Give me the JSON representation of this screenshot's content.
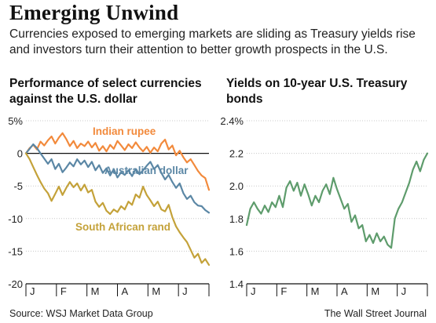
{
  "title": "Emerging Unwind",
  "subtitle": "Currencies exposed to emerging markets are sliding as Treasury yields rise and investors turn their attention to better growth prospects in the U.S.",
  "source": "Source: WSJ Market Data Group",
  "credit": "The Wall Street Journal",
  "colors": {
    "rupee": "#f28a3c",
    "aud": "#5b87a5",
    "rand": "#c4a23a",
    "yield": "#5e9c6c",
    "grid": "#c8c8c8"
  },
  "chart_data": [
    {
      "type": "line",
      "title": "Performance of select currencies against the U.S. dollar",
      "x_ticks": [
        "J",
        "F",
        "M",
        "A",
        "M",
        "J"
      ],
      "y_ticks": [
        "5%",
        "0",
        "-5",
        "-10",
        "-15",
        "-20"
      ],
      "ylim": [
        -20,
        5
      ],
      "grid": true,
      "zero_line": true,
      "series": [
        {
          "name": "Indian rupee",
          "color": "#f28a3c",
          "x": [
            0,
            0.02,
            0.04,
            0.06,
            0.08,
            0.1,
            0.12,
            0.14,
            0.16,
            0.18,
            0.2,
            0.22,
            0.24,
            0.26,
            0.28,
            0.3,
            0.32,
            0.34,
            0.36,
            0.38,
            0.4,
            0.42,
            0.44,
            0.46,
            0.48,
            0.5,
            0.52,
            0.54,
            0.56,
            0.58,
            0.6,
            0.62,
            0.64,
            0.66,
            0.68,
            0.7,
            0.72,
            0.74,
            0.76,
            0.78,
            0.8,
            0.82,
            0.84,
            0.86,
            0.88,
            0.9,
            0.92,
            0.94,
            0.96,
            0.98,
            1
          ],
          "y": [
            0,
            0.8,
            1.3,
            0.6,
            1.8,
            1.2,
            2,
            2.6,
            1.5,
            2.4,
            3.1,
            2.2,
            1.1,
            1.9,
            0.8,
            1.5,
            1.1,
            1.8,
            0.9,
            1.6,
            0.4,
            1.1,
            0.3,
            1.3,
            0.7,
            1.9,
            1.2,
            0.5,
            1.4,
            0.8,
            1.7,
            0.9,
            0.3,
            1,
            0.1,
            0.9,
            0.3,
            1.5,
            2.1,
            0.6,
            1.2,
            -0.3,
            0.4,
            -0.6,
            -1.4,
            -0.9,
            -1.8,
            -2.7,
            -3.4,
            -3.8,
            -5.6
          ]
        },
        {
          "name": "Australian dollar",
          "color": "#5b87a5",
          "x": [
            0,
            0.02,
            0.04,
            0.06,
            0.08,
            0.1,
            0.12,
            0.14,
            0.16,
            0.18,
            0.2,
            0.22,
            0.24,
            0.26,
            0.28,
            0.3,
            0.32,
            0.34,
            0.36,
            0.38,
            0.4,
            0.42,
            0.44,
            0.46,
            0.48,
            0.5,
            0.52,
            0.54,
            0.56,
            0.58,
            0.6,
            0.62,
            0.64,
            0.66,
            0.68,
            0.7,
            0.72,
            0.74,
            0.76,
            0.78,
            0.8,
            0.82,
            0.84,
            0.86,
            0.88,
            0.9,
            0.92,
            0.94,
            0.96,
            0.98,
            1
          ],
          "y": [
            0,
            0.7,
            1.4,
            0.8,
            0,
            -0.8,
            -1.6,
            -0.9,
            -2.4,
            -1.6,
            -2.9,
            -2.2,
            -1.4,
            -2,
            -0.9,
            -1.7,
            -1.1,
            -2.1,
            -1.3,
            -2.6,
            -1.8,
            -3,
            -2.3,
            -3.4,
            -2.4,
            -3.7,
            -2.9,
            -3.3,
            -2.6,
            -3.5,
            -2.4,
            -3.2,
            -2.6,
            -1.9,
            -1.3,
            -2.4,
            -1.8,
            -3,
            -4,
            -3.3,
            -4.4,
            -5.3,
            -4.6,
            -6.1,
            -7,
            -6.5,
            -7.5,
            -8,
            -8.1,
            -8.7,
            -9.1
          ]
        },
        {
          "name": "South African rand",
          "color": "#c4a23a",
          "x": [
            0,
            0.02,
            0.04,
            0.06,
            0.08,
            0.1,
            0.12,
            0.14,
            0.16,
            0.18,
            0.2,
            0.22,
            0.24,
            0.26,
            0.28,
            0.3,
            0.32,
            0.34,
            0.36,
            0.38,
            0.4,
            0.42,
            0.44,
            0.46,
            0.48,
            0.5,
            0.52,
            0.54,
            0.56,
            0.58,
            0.6,
            0.62,
            0.64,
            0.66,
            0.68,
            0.7,
            0.72,
            0.74,
            0.76,
            0.78,
            0.8,
            0.82,
            0.84,
            0.86,
            0.88,
            0.9,
            0.92,
            0.94,
            0.96,
            0.98,
            1
          ],
          "y": [
            0,
            -0.9,
            -2.1,
            -3.3,
            -4.4,
            -5.4,
            -6.1,
            -7.3,
            -6.2,
            -5.1,
            -6.4,
            -5.3,
            -4.4,
            -5.2,
            -4.6,
            -5.7,
            -4.8,
            -6,
            -5.6,
            -7.4,
            -8.2,
            -7.6,
            -8.8,
            -9.3,
            -8.6,
            -9,
            -8.1,
            -8.6,
            -7.4,
            -7.9,
            -6.3,
            -6.8,
            -5.1,
            -6.4,
            -7.2,
            -8.1,
            -7.4,
            -8.6,
            -8.9,
            -7.9,
            -9.8,
            -11.2,
            -12.1,
            -12.9,
            -13.6,
            -14.8,
            -16,
            -15.4,
            -16.8,
            -16.2,
            -17.1
          ]
        }
      ]
    },
    {
      "type": "line",
      "title": "Yields on 10-year U.S. Treasury bonds",
      "x_ticks": [
        "J",
        "F",
        "M",
        "A",
        "M",
        "J"
      ],
      "y_ticks": [
        "2.4%",
        "2.2",
        "2.0",
        "1.8",
        "1.6",
        "1.4"
      ],
      "ylim": [
        1.4,
        2.4
      ],
      "grid": true,
      "series": [
        {
          "name": "",
          "color": "#5e9c6c",
          "x": [
            0,
            0.02,
            0.04,
            0.06,
            0.08,
            0.1,
            0.12,
            0.14,
            0.16,
            0.18,
            0.2,
            0.22,
            0.24,
            0.26,
            0.28,
            0.3,
            0.32,
            0.34,
            0.36,
            0.38,
            0.4,
            0.42,
            0.44,
            0.46,
            0.48,
            0.5,
            0.52,
            0.54,
            0.56,
            0.58,
            0.6,
            0.62,
            0.64,
            0.66,
            0.68,
            0.7,
            0.72,
            0.74,
            0.76,
            0.78,
            0.8,
            0.82,
            0.84,
            0.86,
            0.88,
            0.9,
            0.92,
            0.94,
            0.96,
            0.98,
            1
          ],
          "y": [
            1.76,
            1.86,
            1.9,
            1.86,
            1.83,
            1.88,
            1.84,
            1.9,
            1.87,
            1.94,
            1.87,
            1.99,
            2.03,
            1.97,
            2.02,
            1.94,
            2.01,
            1.95,
            1.88,
            1.94,
            1.9,
            1.97,
            2.01,
            1.95,
            2.05,
            1.98,
            1.92,
            1.86,
            1.89,
            1.78,
            1.82,
            1.74,
            1.76,
            1.66,
            1.7,
            1.65,
            1.71,
            1.66,
            1.69,
            1.64,
            1.62,
            1.8,
            1.86,
            1.9,
            1.96,
            2.02,
            2.1,
            2.15,
            2.09,
            2.16,
            2.2
          ]
        }
      ]
    }
  ]
}
